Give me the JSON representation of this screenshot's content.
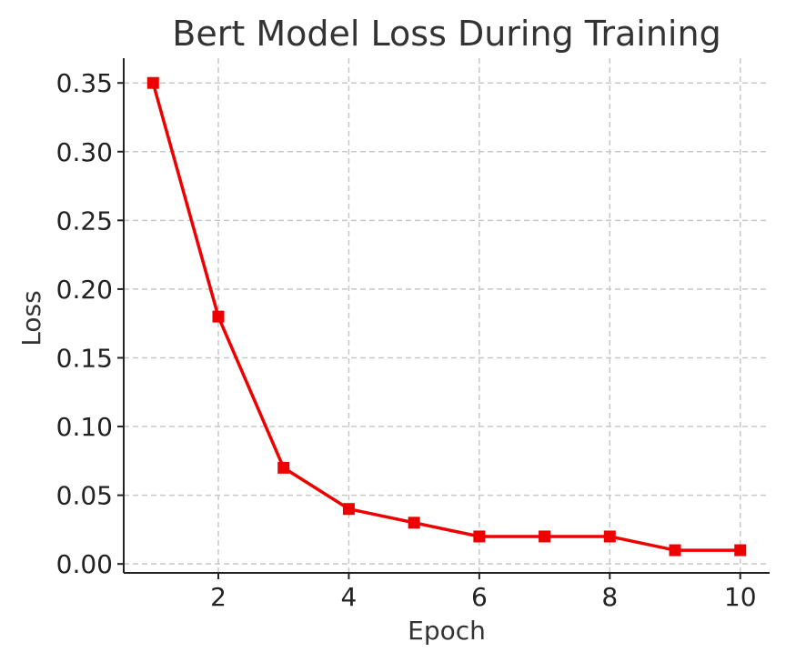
{
  "chart_data": {
    "type": "line",
    "title": "Bert Model Loss During Training",
    "xlabel": "Epoch",
    "ylabel": "Loss",
    "x": [
      1,
      2,
      3,
      4,
      5,
      6,
      7,
      8,
      9,
      10
    ],
    "series": [
      {
        "name": "Loss",
        "color": "#ee0000",
        "marker": "square",
        "values": [
          0.35,
          0.18,
          0.07,
          0.04,
          0.03,
          0.02,
          0.02,
          0.02,
          0.01,
          0.01
        ]
      }
    ],
    "xlim": [
      0.55,
      10.45
    ],
    "ylim": [
      -0.0065,
      0.368
    ],
    "xticks": [
      2,
      4,
      6,
      8,
      10
    ],
    "xtick_labels": [
      "2",
      "4",
      "6",
      "8",
      "10"
    ],
    "yticks": [
      0.0,
      0.05,
      0.1,
      0.15,
      0.2,
      0.25,
      0.3,
      0.35
    ],
    "ytick_labels": [
      "0.00",
      "0.05",
      "0.10",
      "0.15",
      "0.20",
      "0.25",
      "0.30",
      "0.35"
    ],
    "grid": true,
    "legend": "none"
  }
}
